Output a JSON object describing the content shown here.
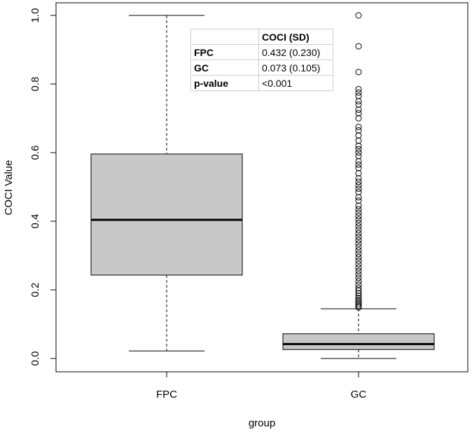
{
  "chart_data": {
    "type": "boxplot",
    "xlabel": "group",
    "ylabel": "COCI Value",
    "ylim": [
      0,
      1
    ],
    "yticks": [
      "0.0",
      "0.2",
      "0.4",
      "0.6",
      "0.8",
      "1.0"
    ],
    "categories": [
      "FPC",
      "GC"
    ],
    "boxes": [
      {
        "name": "FPC",
        "whisker_low": 0.022,
        "q1": 0.243,
        "median": 0.404,
        "q3": 0.596,
        "whisker_high": 1.0,
        "outliers": []
      },
      {
        "name": "GC",
        "whisker_low": 0.0,
        "q1": 0.026,
        "median": 0.042,
        "q3": 0.072,
        "whisker_high": 0.145,
        "outliers": [
          1.0,
          0.91,
          0.835,
          0.785,
          0.775,
          0.765,
          0.75,
          0.74,
          0.725,
          0.715,
          0.7,
          0.675,
          0.665,
          0.65,
          0.635,
          0.62,
          0.61,
          0.6,
          0.59,
          0.575,
          0.565,
          0.555,
          0.54,
          0.525,
          0.515,
          0.505,
          0.495,
          0.485,
          0.47,
          0.46,
          0.445,
          0.435,
          0.425,
          0.415,
          0.405,
          0.395,
          0.385,
          0.375,
          0.365,
          0.355,
          0.345,
          0.335,
          0.325,
          0.315,
          0.305,
          0.295,
          0.285,
          0.275,
          0.265,
          0.255,
          0.245,
          0.235,
          0.225,
          0.215,
          0.205,
          0.198,
          0.19,
          0.183,
          0.176,
          0.17,
          0.164,
          0.158,
          0.153,
          0.149
        ]
      }
    ],
    "box_fill": "#c8c8c8",
    "legend_table": {
      "header": [
        "",
        "COCI (SD)"
      ],
      "rows": [
        [
          "FPC",
          "0.432 (0.230)"
        ],
        [
          "GC",
          "0.073 (0.105)"
        ],
        [
          "p-value",
          "<0.001"
        ]
      ]
    }
  }
}
